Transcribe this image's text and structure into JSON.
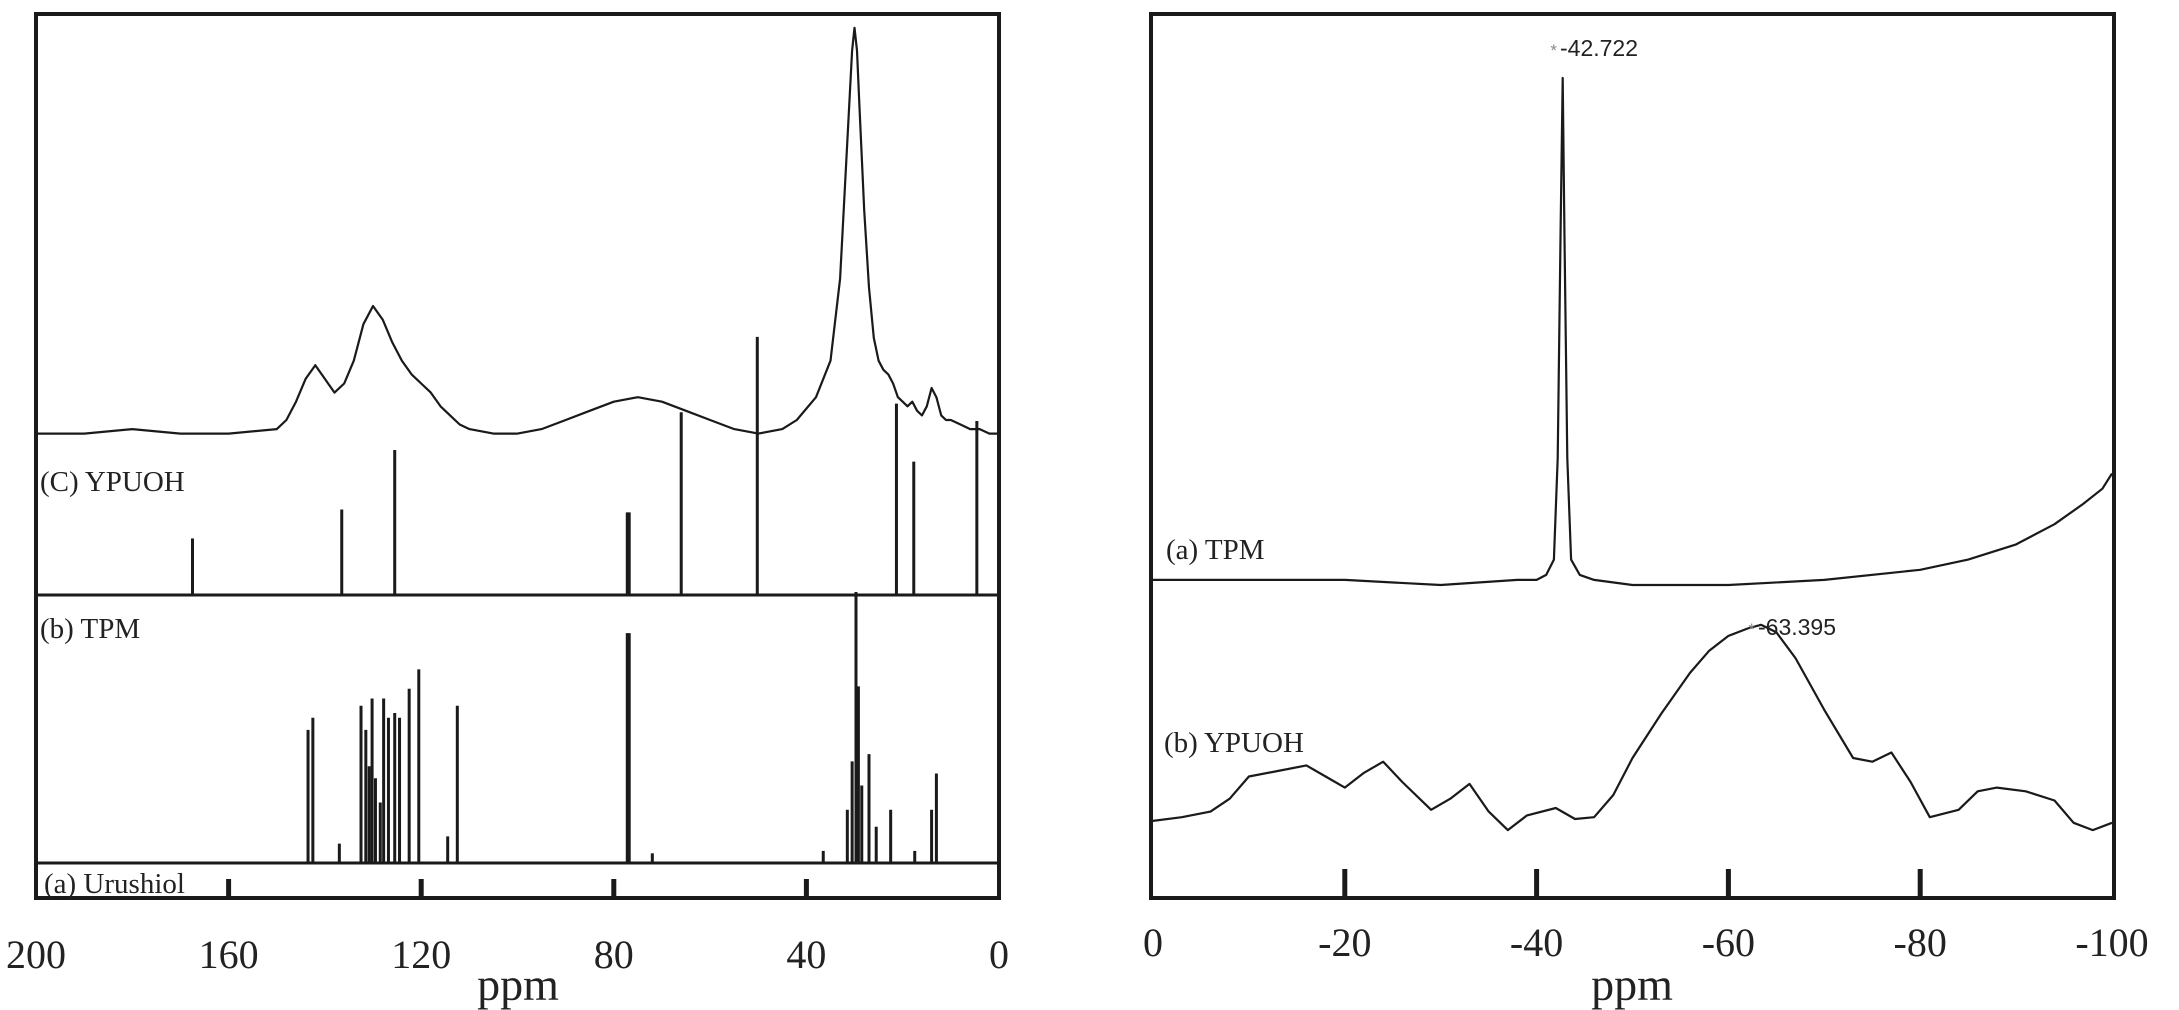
{
  "chart_data": [
    {
      "type": "line",
      "subtype": "stacked NMR spectra",
      "xlabel": "ppm",
      "xlim": [
        200,
        0
      ],
      "x_reversed": true,
      "xticks": [
        200,
        160,
        120,
        80,
        40,
        0
      ],
      "xtick_labels": [
        "200",
        "160",
        "120",
        "80",
        "40",
        "0"
      ],
      "grid": false,
      "series": [
        {
          "name": "(C) YPUOH",
          "kind": "broad",
          "offset": 0.0,
          "x": [
            200,
            190,
            180,
            170,
            160,
            150,
            148,
            146,
            144,
            142,
            140,
            138,
            136,
            134,
            132,
            130,
            128,
            126,
            124,
            122,
            120,
            118,
            116,
            114,
            112,
            110,
            105,
            100,
            95,
            90,
            85,
            80,
            75,
            70,
            65,
            60,
            55,
            50,
            45,
            42,
            38,
            35,
            33,
            32,
            31,
            30.5,
            30,
            29.5,
            29,
            28,
            27,
            26,
            25,
            24,
            23,
            22,
            21,
            20,
            19,
            18,
            17,
            16,
            15,
            14,
            13,
            12,
            11,
            10,
            8,
            6,
            4,
            2,
            0
          ],
          "y": [
            0.06,
            0.06,
            0.07,
            0.06,
            0.06,
            0.07,
            0.09,
            0.13,
            0.18,
            0.21,
            0.18,
            0.15,
            0.17,
            0.22,
            0.3,
            0.34,
            0.31,
            0.26,
            0.22,
            0.19,
            0.17,
            0.15,
            0.12,
            0.1,
            0.08,
            0.07,
            0.06,
            0.06,
            0.07,
            0.09,
            0.11,
            0.13,
            0.14,
            0.13,
            0.11,
            0.09,
            0.07,
            0.06,
            0.07,
            0.09,
            0.14,
            0.22,
            0.4,
            0.6,
            0.8,
            0.9,
            0.95,
            0.9,
            0.78,
            0.55,
            0.38,
            0.27,
            0.22,
            0.2,
            0.19,
            0.17,
            0.14,
            0.13,
            0.12,
            0.13,
            0.11,
            0.1,
            0.12,
            0.16,
            0.14,
            0.1,
            0.09,
            0.09,
            0.08,
            0.07,
            0.07,
            0.06,
            0.06
          ]
        },
        {
          "name": "(b) TPM",
          "kind": "sticks",
          "offset": 0.0,
          "peaks": [
            {
              "x": 167.5,
              "h": 0.39
            },
            {
              "x": 136.5,
              "h": 0.59
            },
            {
              "x": 125.5,
              "h": 1.0
            },
            {
              "x": 77.2,
              "h": 0.57
            },
            {
              "x": 76.8,
              "h": 0.57
            },
            {
              "x": 66.0,
              "h": 1.26
            },
            {
              "x": 50.2,
              "h": 1.78
            },
            {
              "x": 21.3,
              "h": 1.32
            },
            {
              "x": 17.7,
              "h": 0.92
            },
            {
              "x": 4.6,
              "h": 1.2
            }
          ]
        },
        {
          "name": "(a) Urushiol",
          "kind": "sticks",
          "offset": 0.0,
          "peaks": [
            {
              "x": 143.5,
              "h": 0.55
            },
            {
              "x": 142.5,
              "h": 0.6
            },
            {
              "x": 137.0,
              "h": 0.08
            },
            {
              "x": 132.5,
              "h": 0.65
            },
            {
              "x": 131.5,
              "h": 0.55
            },
            {
              "x": 130.8,
              "h": 0.4
            },
            {
              "x": 130.2,
              "h": 0.68
            },
            {
              "x": 129.5,
              "h": 0.35
            },
            {
              "x": 128.5,
              "h": 0.25
            },
            {
              "x": 127.8,
              "h": 0.68
            },
            {
              "x": 126.8,
              "h": 0.6
            },
            {
              "x": 125.5,
              "h": 0.62
            },
            {
              "x": 124.5,
              "h": 0.6
            },
            {
              "x": 122.5,
              "h": 0.72
            },
            {
              "x": 120.5,
              "h": 0.8
            },
            {
              "x": 114.5,
              "h": 0.11
            },
            {
              "x": 112.5,
              "h": 0.65
            },
            {
              "x": 77.2,
              "h": 0.95
            },
            {
              "x": 76.8,
              "h": 0.95
            },
            {
              "x": 72.0,
              "h": 0.04
            },
            {
              "x": 36.5,
              "h": 0.05
            },
            {
              "x": 31.5,
              "h": 0.22
            },
            {
              "x": 30.5,
              "h": 0.42
            },
            {
              "x": 29.7,
              "h": 1.12
            },
            {
              "x": 29.2,
              "h": 0.73
            },
            {
              "x": 28.5,
              "h": 0.32
            },
            {
              "x": 27.0,
              "h": 0.45
            },
            {
              "x": 25.5,
              "h": 0.15
            },
            {
              "x": 22.5,
              "h": 0.22
            },
            {
              "x": 17.5,
              "h": 0.05
            },
            {
              "x": 14.0,
              "h": 0.22
            },
            {
              "x": 13.0,
              "h": 0.37
            }
          ]
        }
      ]
    },
    {
      "type": "line",
      "subtype": "stacked NMR spectra",
      "xlabel": "ppm",
      "xlim": [
        0,
        -100
      ],
      "x_reversed": true,
      "xticks": [
        0,
        -20,
        -40,
        -60,
        -80,
        -100
      ],
      "xtick_labels": [
        "0",
        "-20",
        "-40",
        "-60",
        "-80",
        "-100"
      ],
      "grid": false,
      "annotations": [
        "*",
        "-42.722",
        "*",
        "-63.395"
      ],
      "series": [
        {
          "name": "(a) TPM",
          "x": [
            0,
            -10,
            -20,
            -30,
            -38,
            -40,
            -41,
            -41.8,
            -42.2,
            -42.5,
            -42.722,
            -42.9,
            -43.2,
            -43.6,
            -44.5,
            -46,
            -50,
            -60,
            -70,
            -80,
            -85,
            -90,
            -94,
            -97,
            -99,
            -100
          ],
          "y": [
            0.01,
            0.01,
            0.01,
            0.0,
            0.01,
            0.01,
            0.02,
            0.05,
            0.25,
            0.7,
            1.0,
            0.7,
            0.25,
            0.05,
            0.02,
            0.01,
            0.0,
            0.0,
            0.01,
            0.03,
            0.05,
            0.08,
            0.12,
            0.16,
            0.19,
            0.22
          ]
        },
        {
          "name": "(b) YPUOH",
          "x": [
            0,
            -3,
            -6,
            -8,
            -10,
            -13,
            -16,
            -18,
            -20,
            -22,
            -24,
            -26,
            -29,
            -31,
            -33,
            -35,
            -37,
            -39,
            -42,
            -44,
            -46,
            -48,
            -50,
            -53,
            -56,
            -58,
            -60,
            -62,
            -63.395,
            -65,
            -67,
            -70,
            -73,
            -75,
            -77,
            -79,
            -81,
            -84,
            -86,
            -88,
            -91,
            -94,
            -96,
            -98,
            -100
          ],
          "y": [
            0.06,
            0.08,
            0.11,
            0.18,
            0.3,
            0.33,
            0.36,
            0.3,
            0.24,
            0.32,
            0.38,
            0.27,
            0.12,
            0.18,
            0.26,
            0.11,
            0.01,
            0.09,
            0.13,
            0.07,
            0.08,
            0.2,
            0.4,
            0.64,
            0.86,
            0.98,
            1.06,
            1.1,
            1.12,
            1.08,
            0.94,
            0.66,
            0.4,
            0.38,
            0.43,
            0.27,
            0.08,
            0.12,
            0.22,
            0.24,
            0.22,
            0.17,
            0.05,
            0.01,
            0.05
          ]
        }
      ]
    }
  ]
}
